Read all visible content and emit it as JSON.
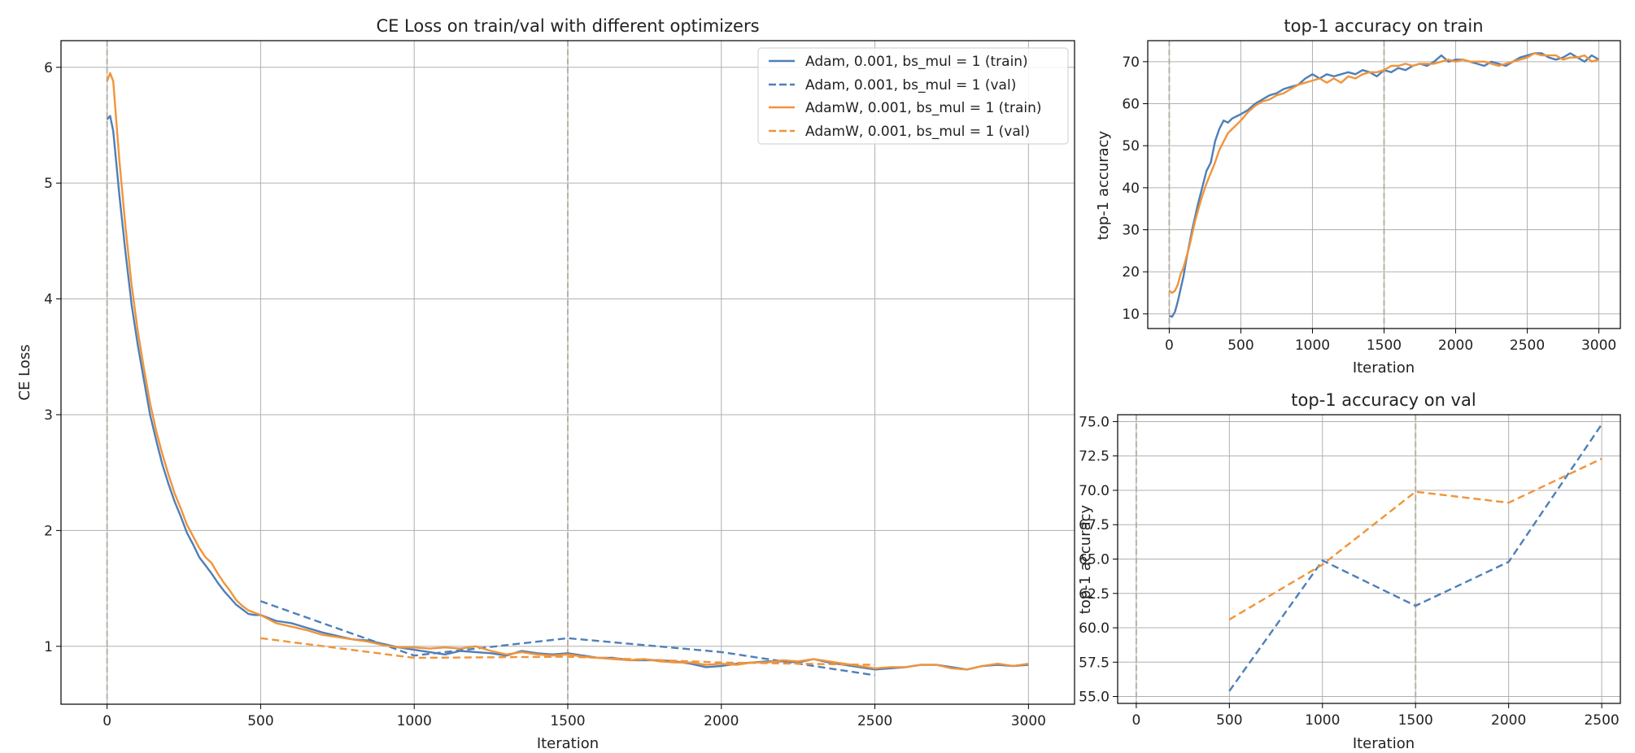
{
  "colors": {
    "adam": "#4e7fb8",
    "adamw": "#f0943a",
    "grid": "#b0b0b0",
    "vline": "#b9b1a5"
  },
  "chart_data": [
    {
      "id": "loss",
      "type": "line",
      "title": "CE Loss on train/val with different optimizers",
      "xlabel": "Iteration",
      "ylabel": "CE Loss",
      "xlim": [
        -150,
        3150
      ],
      "ylim": [
        0.5,
        6.23
      ],
      "xticks": [
        0,
        500,
        1000,
        1500,
        2000,
        2500,
        3000
      ],
      "yticks": [
        1,
        2,
        3,
        4,
        5,
        6
      ],
      "grid": true,
      "vlines": [
        0,
        1500
      ],
      "legend": {
        "position": "top-right",
        "entries": [
          "Adam, 0.001, bs_mul = 1 (train)",
          "Adam, 0.001, bs_mul = 1 (val)",
          "AdamW, 0.001, bs_mul = 1 (train)",
          "AdamW, 0.001, bs_mul = 1 (val)"
        ]
      },
      "series": [
        {
          "name": "Adam, 0.001, bs_mul = 1 (train)",
          "color": "adam",
          "dash": false,
          "x": [
            0,
            10,
            20,
            40,
            60,
            80,
            100,
            120,
            140,
            160,
            180,
            200,
            220,
            240,
            260,
            280,
            300,
            320,
            340,
            360,
            380,
            400,
            420,
            440,
            460,
            480,
            500,
            550,
            600,
            650,
            700,
            750,
            800,
            850,
            900,
            950,
            1000,
            1050,
            1100,
            1150,
            1200,
            1250,
            1300,
            1350,
            1400,
            1450,
            1500,
            1550,
            1600,
            1650,
            1700,
            1750,
            1800,
            1850,
            1900,
            1950,
            2000,
            2050,
            2100,
            2150,
            2200,
            2250,
            2300,
            2350,
            2400,
            2450,
            2500,
            2550,
            2600,
            2650,
            2700,
            2750,
            2800,
            2850,
            2900,
            2950,
            3000
          ],
          "y": [
            5.55,
            5.58,
            5.45,
            4.9,
            4.4,
            3.95,
            3.6,
            3.3,
            3.0,
            2.78,
            2.57,
            2.4,
            2.25,
            2.12,
            1.98,
            1.88,
            1.77,
            1.7,
            1.63,
            1.55,
            1.48,
            1.42,
            1.36,
            1.32,
            1.28,
            1.27,
            1.27,
            1.22,
            1.2,
            1.16,
            1.12,
            1.09,
            1.06,
            1.05,
            1.02,
            0.99,
            0.97,
            0.95,
            0.93,
            0.96,
            0.95,
            0.94,
            0.92,
            0.96,
            0.94,
            0.93,
            0.94,
            0.92,
            0.9,
            0.9,
            0.88,
            0.88,
            0.88,
            0.87,
            0.85,
            0.82,
            0.83,
            0.85,
            0.86,
            0.87,
            0.87,
            0.86,
            0.89,
            0.86,
            0.84,
            0.82,
            0.8,
            0.81,
            0.82,
            0.84,
            0.84,
            0.82,
            0.8,
            0.83,
            0.84,
            0.83,
            0.84
          ]
        },
        {
          "name": "Adam, 0.001, bs_mul = 1 (val)",
          "color": "adam",
          "dash": true,
          "x": [
            500,
            1000,
            1500,
            2000,
            2500
          ],
          "y": [
            1.39,
            0.92,
            1.07,
            0.95,
            0.75
          ]
        },
        {
          "name": "AdamW, 0.001, bs_mul = 1 (train)",
          "color": "adamw",
          "dash": false,
          "x": [
            0,
            10,
            20,
            40,
            60,
            80,
            100,
            120,
            140,
            160,
            180,
            200,
            220,
            240,
            260,
            280,
            300,
            320,
            340,
            360,
            380,
            400,
            420,
            440,
            460,
            480,
            500,
            550,
            600,
            650,
            700,
            750,
            800,
            850,
            900,
            950,
            1000,
            1050,
            1100,
            1150,
            1200,
            1250,
            1300,
            1350,
            1400,
            1450,
            1500,
            1550,
            1600,
            1650,
            1700,
            1750,
            1800,
            1850,
            1900,
            1950,
            2000,
            2050,
            2100,
            2150,
            2200,
            2250,
            2300,
            2350,
            2400,
            2450,
            2500,
            2550,
            2600,
            2650,
            2700,
            2750,
            2800,
            2850,
            2900,
            2950,
            3000
          ],
          "y": [
            5.88,
            5.95,
            5.88,
            5.2,
            4.62,
            4.12,
            3.72,
            3.4,
            3.1,
            2.86,
            2.66,
            2.48,
            2.32,
            2.19,
            2.05,
            1.95,
            1.85,
            1.77,
            1.72,
            1.63,
            1.55,
            1.48,
            1.4,
            1.35,
            1.31,
            1.29,
            1.27,
            1.2,
            1.17,
            1.14,
            1.1,
            1.08,
            1.06,
            1.04,
            1.01,
            0.99,
            0.99,
            0.98,
            0.99,
            0.98,
            1.0,
            0.96,
            0.93,
            0.95,
            0.93,
            0.92,
            0.93,
            0.91,
            0.9,
            0.89,
            0.88,
            0.89,
            0.87,
            0.86,
            0.86,
            0.84,
            0.85,
            0.84,
            0.86,
            0.86,
            0.88,
            0.87,
            0.89,
            0.87,
            0.85,
            0.83,
            0.81,
            0.82,
            0.82,
            0.84,
            0.84,
            0.81,
            0.8,
            0.83,
            0.85,
            0.83,
            0.85
          ]
        },
        {
          "name": "AdamW, 0.001, bs_mul = 1 (val)",
          "color": "adamw",
          "dash": true,
          "x": [
            500,
            1000,
            1500,
            2000,
            2500
          ],
          "y": [
            1.07,
            0.9,
            0.91,
            0.86,
            0.84
          ]
        }
      ]
    },
    {
      "id": "train_acc",
      "type": "line",
      "title": "top-1 accuracy on train",
      "xlabel": "Iteration",
      "ylabel": "top-1 accuracy",
      "xlim": [
        -150,
        3150
      ],
      "ylim": [
        6.5,
        75
      ],
      "xticks": [
        0,
        500,
        1000,
        1500,
        2000,
        2500,
        3000
      ],
      "yticks": [
        10,
        20,
        30,
        40,
        50,
        60,
        70
      ],
      "grid": true,
      "vlines": [
        0,
        1500
      ],
      "series": [
        {
          "color": "adam",
          "dash": false,
          "x": [
            0,
            20,
            40,
            60,
            80,
            100,
            120,
            140,
            160,
            180,
            200,
            230,
            260,
            290,
            320,
            350,
            380,
            410,
            440,
            470,
            500,
            550,
            600,
            650,
            700,
            750,
            800,
            850,
            900,
            950,
            1000,
            1050,
            1100,
            1150,
            1200,
            1250,
            1300,
            1350,
            1400,
            1450,
            1500,
            1550,
            1600,
            1650,
            1700,
            1750,
            1800,
            1850,
            1900,
            1950,
            2000,
            2050,
            2100,
            2150,
            2200,
            2250,
            2300,
            2350,
            2400,
            2450,
            2500,
            2550,
            2600,
            2650,
            2700,
            2750,
            2800,
            2850,
            2900,
            2950,
            3000
          ],
          "y": [
            9.5,
            9.3,
            10.5,
            13,
            16,
            19,
            23,
            26.5,
            30,
            33,
            36,
            40,
            44,
            46,
            51,
            54,
            56,
            55.5,
            56.5,
            57,
            57.5,
            58.5,
            60,
            61,
            62,
            62.5,
            63.5,
            64,
            64.5,
            66,
            67,
            66,
            67,
            66.5,
            67,
            67.5,
            67,
            68,
            67.5,
            66.5,
            68,
            67.5,
            68.5,
            68,
            69,
            69.5,
            69,
            70,
            71.5,
            70,
            70.5,
            70.5,
            70,
            69.5,
            69,
            70,
            69.5,
            69,
            70,
            71,
            71.5,
            72,
            72,
            71,
            70.5,
            71,
            72,
            71,
            70,
            71.5,
            70.5
          ]
        },
        {
          "color": "adamw",
          "dash": false,
          "x": [
            0,
            20,
            40,
            60,
            80,
            100,
            120,
            140,
            160,
            180,
            200,
            230,
            260,
            290,
            320,
            350,
            380,
            410,
            440,
            470,
            500,
            550,
            600,
            650,
            700,
            750,
            800,
            850,
            900,
            950,
            1000,
            1050,
            1100,
            1150,
            1200,
            1250,
            1300,
            1350,
            1400,
            1450,
            1500,
            1550,
            1600,
            1650,
            1700,
            1750,
            1800,
            1850,
            1900,
            1950,
            2000,
            2050,
            2100,
            2150,
            2200,
            2250,
            2300,
            2350,
            2400,
            2450,
            2500,
            2550,
            2600,
            2650,
            2700,
            2750,
            2800,
            2850,
            2900,
            2950,
            3000
          ],
          "y": [
            15.5,
            15,
            15.5,
            17,
            19.5,
            21,
            23.5,
            26,
            29,
            32,
            34.5,
            38,
            41,
            43.5,
            46,
            49,
            51,
            53,
            54,
            55,
            56,
            58,
            59.5,
            60.5,
            61,
            62,
            62.5,
            63.5,
            64.5,
            65,
            65.5,
            66,
            65,
            66,
            65,
            66.5,
            66,
            67,
            67.5,
            67.5,
            68,
            69,
            69,
            69.5,
            69,
            69.5,
            69.5,
            69.5,
            70,
            70.5,
            70,
            70.5,
            70,
            70,
            70,
            69.5,
            69,
            69.5,
            70,
            70.5,
            71,
            72,
            71.5,
            71.5,
            71.5,
            70.5,
            71,
            71,
            71.5,
            70,
            70.5
          ]
        }
      ]
    },
    {
      "id": "val_acc",
      "type": "line",
      "title": "top-1 accuracy on val",
      "xlabel": "Iteration",
      "ylabel": "top-1 accuracy",
      "xlim": [
        -100,
        2600
      ],
      "ylim": [
        54.5,
        75.5
      ],
      "xticks": [
        0,
        500,
        1000,
        1500,
        2000,
        2500
      ],
      "yticks": [
        "55.0",
        "57.5",
        "60.0",
        "62.5",
        "65.0",
        "67.5",
        "70.0",
        "72.5",
        "75.0"
      ],
      "grid": true,
      "vlines": [
        0,
        1500
      ],
      "series": [
        {
          "color": "adam",
          "dash": true,
          "x": [
            500,
            1000,
            1500,
            2000,
            2500
          ],
          "y": [
            55.4,
            64.9,
            61.6,
            64.8,
            74.8
          ]
        },
        {
          "color": "adamw",
          "dash": true,
          "x": [
            500,
            1000,
            1500,
            2000,
            2500
          ],
          "y": [
            60.6,
            64.6,
            69.9,
            69.1,
            72.3
          ]
        }
      ]
    }
  ]
}
